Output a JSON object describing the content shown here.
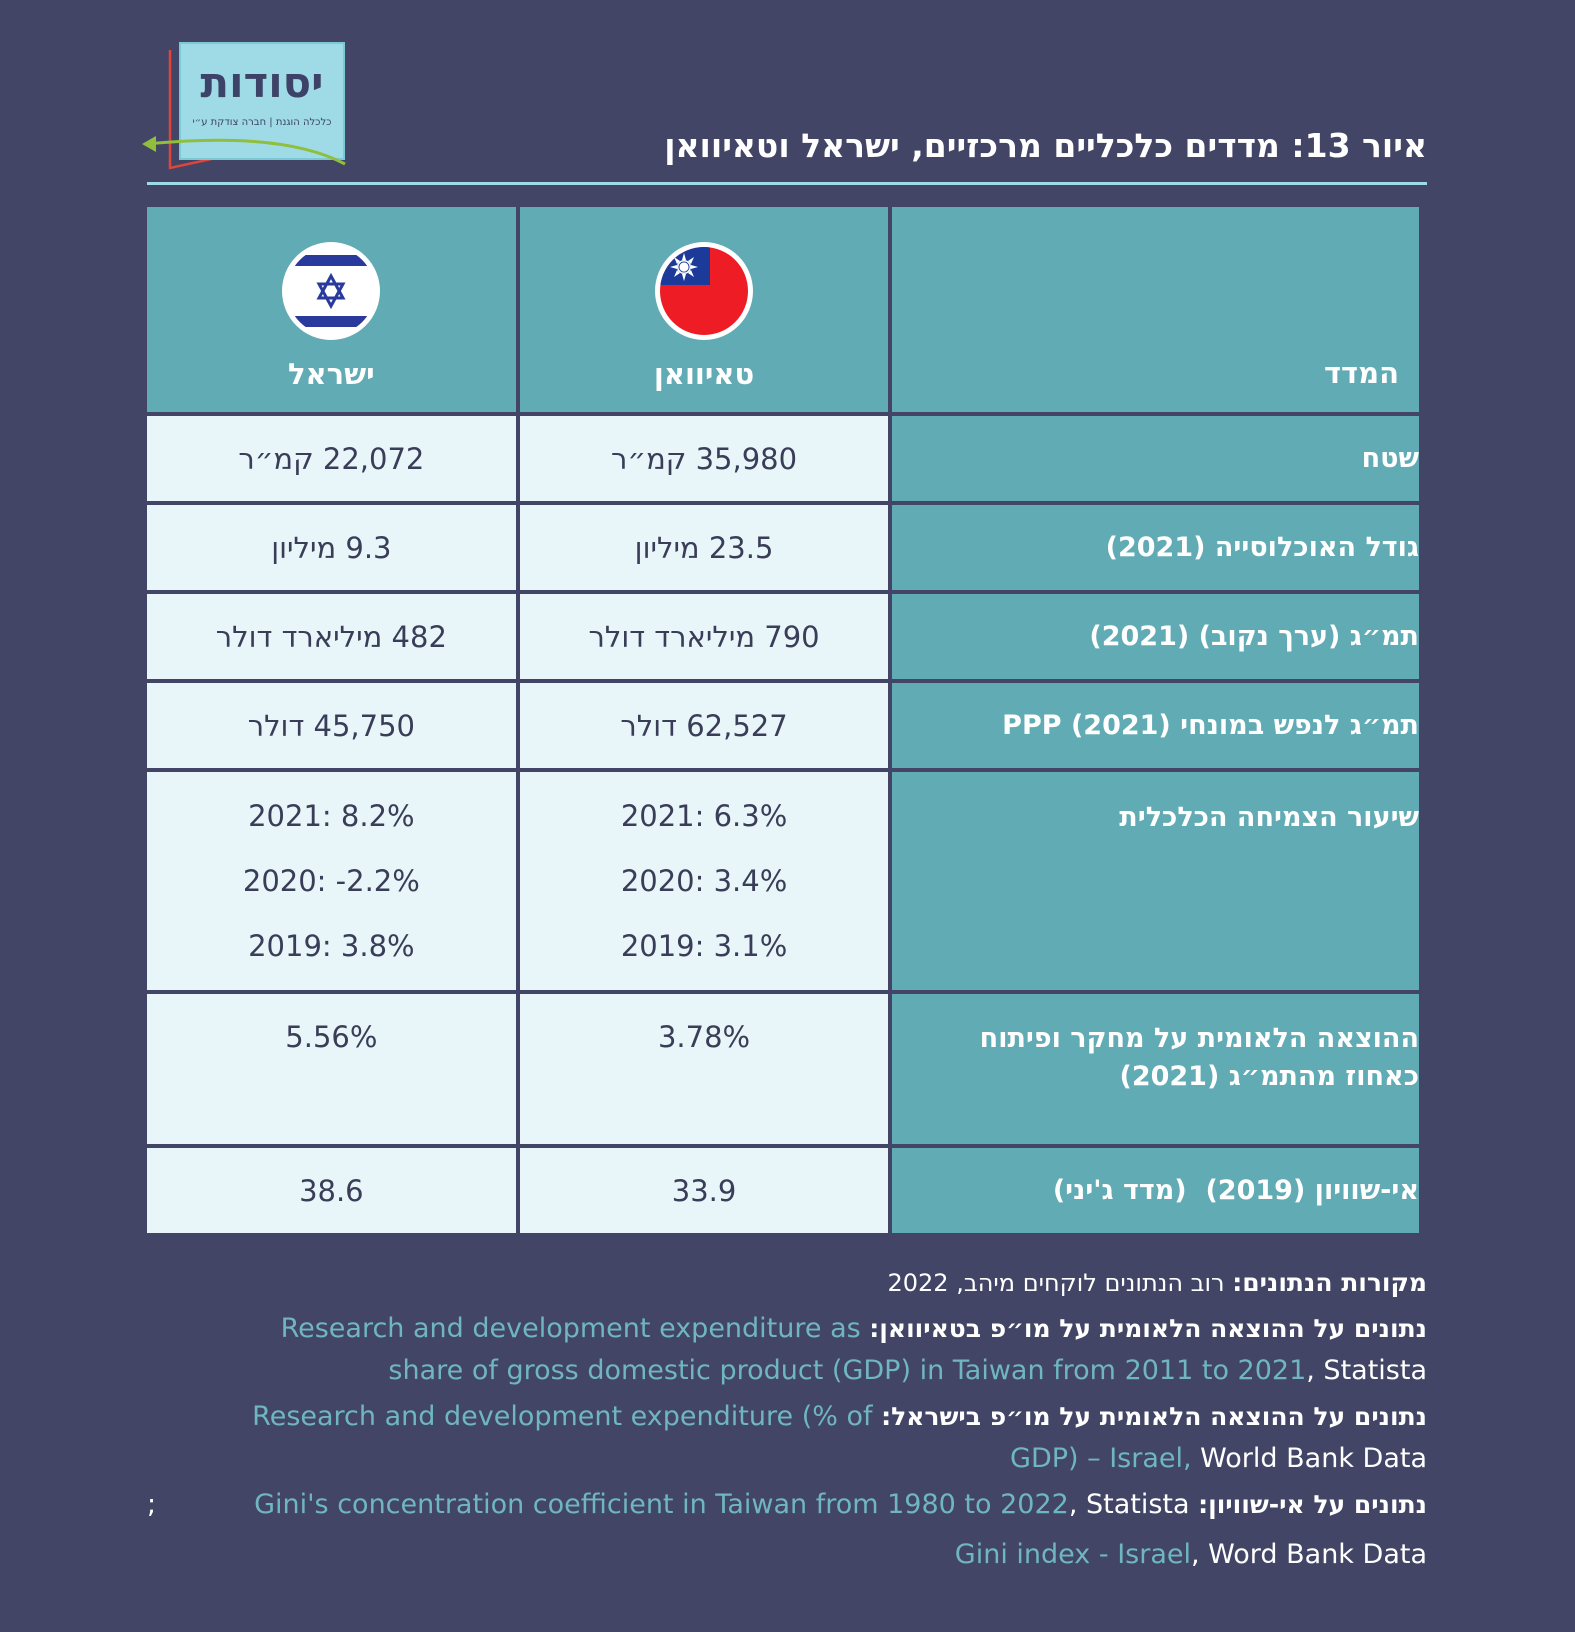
{
  "logo": {
    "word": "יסודות",
    "tagline": "כלכלה הוגנת | חברה צודקת ע״י"
  },
  "title": "איור 13: מדדים כלכליים מרכזיים, ישראל וטאיוואן",
  "colors": {
    "background": "#424566",
    "label_cell": "#61abb5",
    "value_cell": "#e8f6fa",
    "accent_light": "#9fdbe6",
    "link": "#6fb6c0"
  },
  "table": {
    "header": {
      "metric": "המדד",
      "taiwan": "טאיוואן",
      "israel": "ישראל"
    },
    "rows": [
      {
        "label": "שטח",
        "taiwan": "35,980 קמ״ר",
        "israel": "22,072 קמ״ר"
      },
      {
        "label": "גודל האוכלוסייה (2021)",
        "taiwan": "23.5 מיליון",
        "israel": "9.3 מיליון"
      },
      {
        "label": "תמ״ג (ערך נקוב) (2021)",
        "taiwan": "790 מיליארד דולר",
        "israel": "482 מיליארד דולר"
      },
      {
        "label": "תמ״ג לנפש במונחי PPP (2021)",
        "taiwan": "62,527 דולר",
        "israel": "45,750 דולר"
      }
    ],
    "growth": {
      "label": "שיעור הצמיחה הכלכלית",
      "taiwan": [
        "2021: 6.3%",
        "2020: 3.4%",
        "2019: 3.1%"
      ],
      "israel": [
        "2021: 8.2%",
        "2020: -2.2%",
        "2019: 3.8%"
      ]
    },
    "rd": {
      "label_line1": "ההוצאה הלאומית על מחקר ופיתוח",
      "label_line2": "כאחוז מהתמ״ג (2021)",
      "taiwan": "3.78%",
      "israel": "5.56%"
    },
    "gini": {
      "label": "אי-שוויון (2019)  (מדד ג'יני)",
      "taiwan": "33.9",
      "israel": "38.6"
    }
  },
  "sources": {
    "main_label": "מקורות הנתונים:",
    "main_text": "רוב הנתונים לוקחים מיהב, 2022",
    "taiwan_rd_label": "נתונים על ההוצאה הלאומית על מו״פ בטאיוואן:",
    "taiwan_rd_link_1": "Research and development expenditure as",
    "taiwan_rd_link_2": "share of gross domestic product (GDP) in Taiwan from 2011 to 2021",
    "taiwan_rd_publisher": ", Statista",
    "israel_rd_label": "נתונים על ההוצאה הלאומית על מו״פ בישראל:",
    "israel_rd_link_1": "Research and development expenditure (% of",
    "israel_rd_link_2": "GDP) – Israel,",
    "israel_rd_publisher": " World Bank Data",
    "gini_label": "נתונים על אי-שוויון:",
    "gini_link_taiwan": "Gini's concentration coefficient in Taiwan from 1980 to 2022",
    "gini_publisher_taiwan": ", Statista",
    "gini_sep": ";",
    "gini_link_israel": "Gini index - Israel",
    "gini_publisher_israel": ", Word Bank Data"
  }
}
